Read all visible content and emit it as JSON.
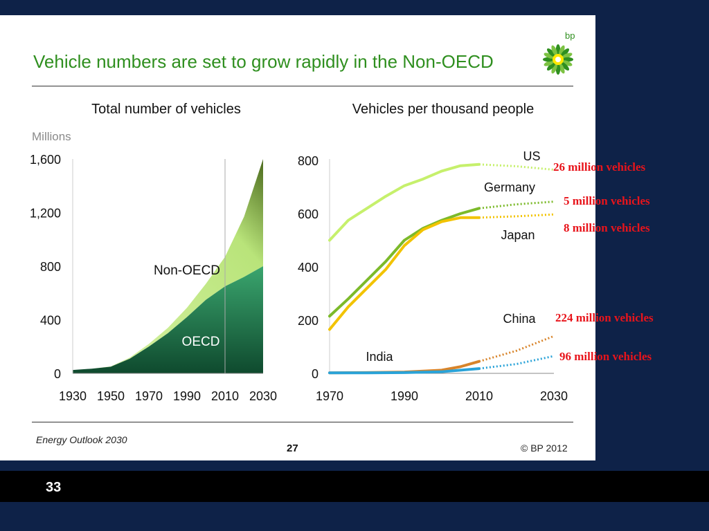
{
  "slide": {
    "title": "Vehicle numbers are set to grow rapidly in the Non-OECD",
    "logo_text": "bp",
    "footer_left": "Energy Outlook 2030",
    "footer_page": "27",
    "footer_right": "© BP 2012",
    "slide_number": "33"
  },
  "annotations": [
    "26 million vehicles",
    "5 million vehicles",
    "8 million vehicles",
    "224 million vehicles",
    "96 million vehicles"
  ],
  "chart_data": [
    {
      "type": "area",
      "title": "Total number of vehicles",
      "ylabel": "Millions",
      "x_ticks": [
        "1930",
        "1950",
        "1970",
        "1990",
        "2010",
        "2030"
      ],
      "y_ticks": [
        "0",
        "400",
        "800",
        "1,200",
        "1,600"
      ],
      "xlim": [
        1930,
        2030
      ],
      "ylim": [
        0,
        1600
      ],
      "stacked": true,
      "colors": {
        "OECD": "#2e8b57",
        "Non-OECD": "#c9ec8e"
      },
      "x": [
        1930,
        1940,
        1950,
        1960,
        1970,
        1980,
        1990,
        2000,
        2010,
        2020,
        2030
      ],
      "series": [
        {
          "name": "OECD",
          "values": [
            25,
            35,
            50,
            110,
            200,
            300,
            420,
            550,
            650,
            720,
            800
          ]
        },
        {
          "name": "Non-OECD",
          "values": [
            0,
            0,
            2,
            8,
            20,
            40,
            70,
            120,
            220,
            450,
            800
          ]
        }
      ]
    },
    {
      "type": "line",
      "title": "Vehicles per thousand people",
      "x_ticks": [
        "1970",
        "1990",
        "2010",
        "2030"
      ],
      "y_ticks": [
        "0",
        "200",
        "400",
        "600",
        "800"
      ],
      "xlim": [
        1970,
        2030
      ],
      "ylim": [
        0,
        800
      ],
      "series": [
        {
          "name": "US",
          "color": "#c6f06c",
          "x": [
            1970,
            1975,
            1980,
            1985,
            1990,
            1995,
            2000,
            2005,
            2010
          ],
          "values": [
            500,
            575,
            620,
            665,
            705,
            730,
            760,
            780,
            785
          ],
          "projection": {
            "x": [
              2010,
              2020,
              2030
            ],
            "values": [
              785,
              778,
              765
            ]
          }
        },
        {
          "name": "Germany",
          "color": "#7cba2a",
          "x": [
            1970,
            1975,
            1980,
            1985,
            1990,
            1995,
            2000,
            2005,
            2010
          ],
          "values": [
            215,
            280,
            350,
            420,
            500,
            545,
            575,
            600,
            620
          ],
          "projection": {
            "x": [
              2010,
              2020,
              2030
            ],
            "values": [
              620,
              635,
              645
            ]
          }
        },
        {
          "name": "Japan",
          "color": "#f2c300",
          "x": [
            1970,
            1975,
            1980,
            1985,
            1990,
            1995,
            2000,
            2005,
            2010
          ],
          "values": [
            165,
            250,
            320,
            390,
            480,
            540,
            570,
            585,
            585
          ],
          "projection": {
            "x": [
              2010,
              2020,
              2030
            ],
            "values": [
              585,
              590,
              597
            ]
          }
        },
        {
          "name": "China",
          "color": "#d8842a",
          "x": [
            1970,
            1980,
            1990,
            2000,
            2005,
            2010
          ],
          "values": [
            2,
            3,
            5,
            12,
            25,
            45
          ],
          "projection": {
            "x": [
              2010,
              2020,
              2030
            ],
            "values": [
              45,
              85,
              140
            ]
          }
        },
        {
          "name": "India",
          "color": "#2aa3d8",
          "x": [
            1970,
            1980,
            1990,
            2000,
            2010
          ],
          "values": [
            2,
            2,
            3,
            6,
            18
          ],
          "projection": {
            "x": [
              2010,
              2020,
              2030
            ],
            "values": [
              18,
              35,
              65
            ]
          }
        }
      ]
    }
  ]
}
